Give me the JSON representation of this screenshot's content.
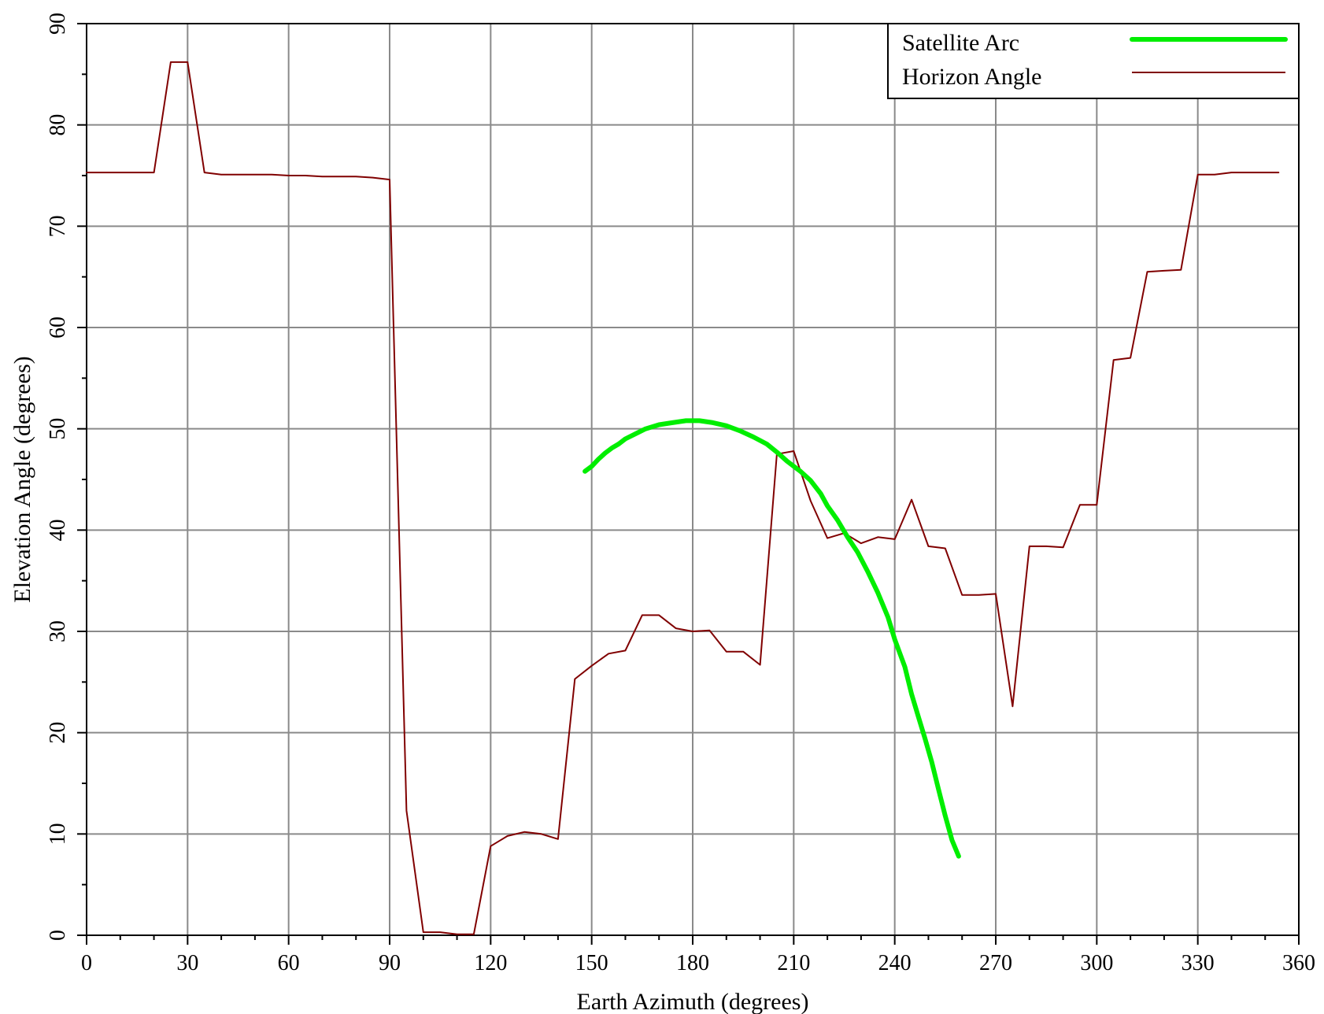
{
  "chart_data": {
    "type": "line",
    "title": "",
    "xlabel": "Earth Azimuth (degrees)",
    "ylabel": "Elevation Angle (degrees)",
    "xlim": [
      0,
      360
    ],
    "ylim": [
      0,
      90
    ],
    "xticks": [
      0,
      30,
      60,
      90,
      120,
      150,
      180,
      210,
      240,
      270,
      300,
      330,
      360
    ],
    "yticks": [
      0,
      10,
      20,
      30,
      40,
      50,
      60,
      70,
      80,
      90
    ],
    "grid": true,
    "legend_position": "top-right",
    "series": [
      {
        "name": "Satellite Arc",
        "color": "#00ee00",
        "points": [
          [
            148,
            45.8
          ],
          [
            150,
            46.3
          ],
          [
            152,
            47.0
          ],
          [
            154,
            47.6
          ],
          [
            156,
            48.1
          ],
          [
            158,
            48.5
          ],
          [
            160,
            49.0
          ],
          [
            163,
            49.5
          ],
          [
            166,
            50.0
          ],
          [
            170,
            50.4
          ],
          [
            174,
            50.6
          ],
          [
            178,
            50.8
          ],
          [
            182,
            50.8
          ],
          [
            186,
            50.6
          ],
          [
            190,
            50.3
          ],
          [
            194,
            49.8
          ],
          [
            198,
            49.2
          ],
          [
            202,
            48.5
          ],
          [
            205,
            47.7
          ],
          [
            208,
            46.8
          ],
          [
            210,
            46.3
          ],
          [
            212,
            45.8
          ],
          [
            215,
            44.9
          ],
          [
            218,
            43.6
          ],
          [
            220,
            42.4
          ],
          [
            223,
            41.0
          ],
          [
            226,
            39.3
          ],
          [
            229,
            37.8
          ],
          [
            232,
            35.9
          ],
          [
            235,
            33.8
          ],
          [
            238,
            31.4
          ],
          [
            240,
            29.2
          ],
          [
            243,
            26.5
          ],
          [
            245,
            23.8
          ],
          [
            247,
            21.6
          ],
          [
            249,
            19.4
          ],
          [
            251,
            17.1
          ],
          [
            253,
            14.4
          ],
          [
            255,
            11.8
          ],
          [
            257,
            9.4
          ],
          [
            259,
            7.8
          ]
        ]
      },
      {
        "name": "Horizon Angle",
        "color": "#800000",
        "points": [
          [
            0,
            75.3
          ],
          [
            5,
            75.3
          ],
          [
            10,
            75.3
          ],
          [
            15,
            75.3
          ],
          [
            20,
            75.3
          ],
          [
            25,
            86.2
          ],
          [
            30,
            86.2
          ],
          [
            35,
            75.3
          ],
          [
            40,
            75.1
          ],
          [
            45,
            75.1
          ],
          [
            50,
            75.1
          ],
          [
            55,
            75.1
          ],
          [
            60,
            75.0
          ],
          [
            65,
            75.0
          ],
          [
            70,
            74.9
          ],
          [
            75,
            74.9
          ],
          [
            80,
            74.9
          ],
          [
            85,
            74.8
          ],
          [
            90,
            74.6
          ],
          [
            95,
            12.3
          ],
          [
            100,
            0.3
          ],
          [
            105,
            0.3
          ],
          [
            110,
            0.1
          ],
          [
            115,
            0.1
          ],
          [
            120,
            8.8
          ],
          [
            125,
            9.8
          ],
          [
            130,
            10.2
          ],
          [
            135,
            10.0
          ],
          [
            140,
            9.5
          ],
          [
            145,
            25.3
          ],
          [
            150,
            26.6
          ],
          [
            155,
            27.8
          ],
          [
            160,
            28.1
          ],
          [
            165,
            31.6
          ],
          [
            170,
            31.6
          ],
          [
            175,
            30.3
          ],
          [
            180,
            30.0
          ],
          [
            185,
            30.1
          ],
          [
            190,
            28.0
          ],
          [
            195,
            28.0
          ],
          [
            200,
            26.7
          ],
          [
            205,
            47.5
          ],
          [
            210,
            47.8
          ],
          [
            215,
            42.9
          ],
          [
            220,
            39.2
          ],
          [
            225,
            39.7
          ],
          [
            230,
            38.7
          ],
          [
            235,
            39.3
          ],
          [
            240,
            39.1
          ],
          [
            245,
            43.0
          ],
          [
            250,
            38.4
          ],
          [
            255,
            38.2
          ],
          [
            260,
            33.6
          ],
          [
            265,
            33.6
          ],
          [
            270,
            33.7
          ],
          [
            275,
            22.6
          ],
          [
            280,
            38.4
          ],
          [
            285,
            38.4
          ],
          [
            290,
            38.3
          ],
          [
            295,
            42.5
          ],
          [
            300,
            42.5
          ],
          [
            305,
            56.8
          ],
          [
            310,
            57.0
          ],
          [
            315,
            65.5
          ],
          [
            320,
            65.6
          ],
          [
            325,
            65.7
          ],
          [
            330,
            75.1
          ],
          [
            335,
            75.1
          ],
          [
            340,
            75.3
          ],
          [
            345,
            75.3
          ],
          [
            350,
            75.3
          ],
          [
            354,
            75.3
          ]
        ]
      }
    ]
  }
}
